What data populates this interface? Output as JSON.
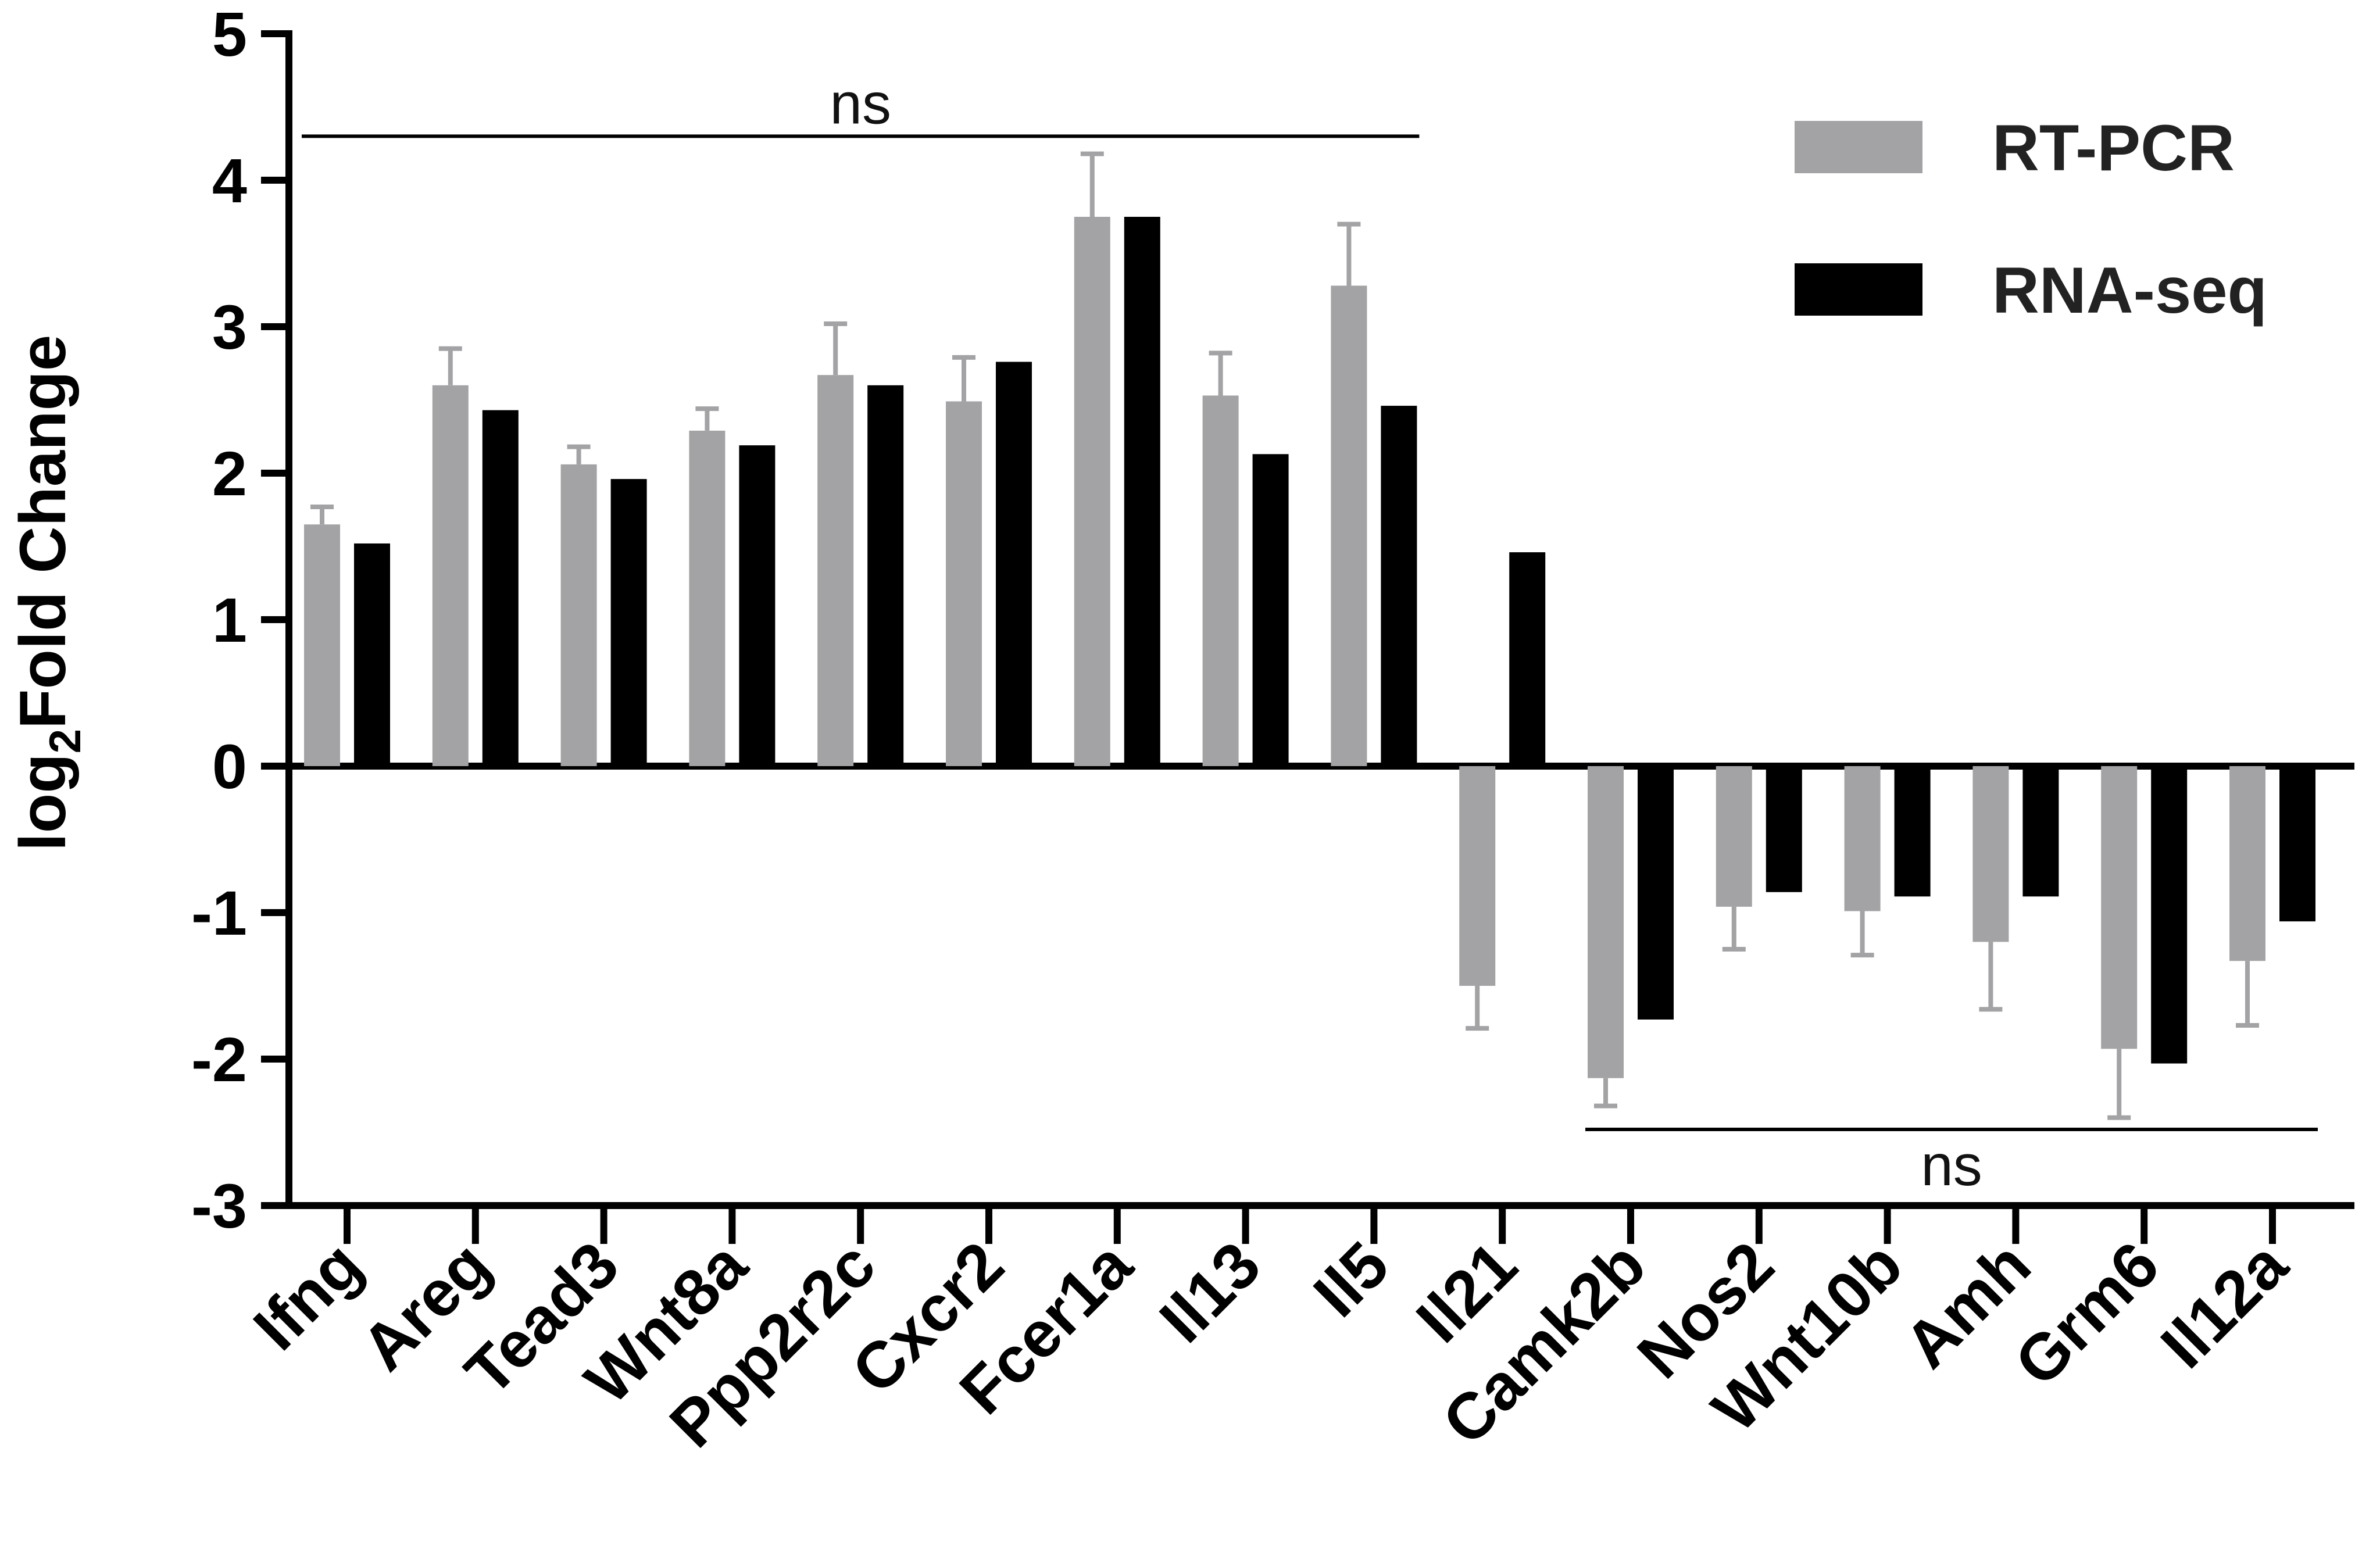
{
  "chart_data": {
    "type": "bar",
    "title": "",
    "xlabel": "",
    "ylabel_prefix": "log",
    "ylabel_subscript": "2",
    "ylabel_suffix": "Fold Change",
    "ylim": [
      -3,
      5
    ],
    "yticks": [
      5,
      4,
      3,
      2,
      1,
      0,
      -1,
      -2,
      -3
    ],
    "grid": false,
    "legend_position": "top-right",
    "categories": [
      "Ifng",
      "Areg",
      "Tead3",
      "Wnt8a",
      "Ppp2r2c",
      "Cxcr2",
      "Fcer1a",
      "Il13",
      "Il5",
      "Il21",
      "Camk2b",
      "Nos2",
      "Wnt10b",
      "Amh",
      "Grm6",
      "Il12a"
    ],
    "series": [
      {
        "name": "RT-PCR",
        "color": "#a3a3a6",
        "values": [
          1.65,
          2.6,
          2.06,
          2.29,
          2.67,
          2.49,
          3.75,
          2.53,
          3.28,
          -1.5,
          -2.13,
          -0.96,
          -0.99,
          -1.2,
          -1.93,
          -1.33
        ],
        "errors": [
          0.12,
          0.25,
          0.12,
          0.15,
          0.35,
          0.3,
          0.43,
          0.29,
          0.42,
          0.29,
          0.19,
          0.29,
          0.3,
          0.46,
          0.47,
          0.44
        ]
      },
      {
        "name": "RNA-seq",
        "color": "#000000",
        "values": [
          1.52,
          2.43,
          1.96,
          2.19,
          2.6,
          2.76,
          3.75,
          2.13,
          2.46,
          1.46,
          -1.73,
          -0.86,
          -0.89,
          -0.89,
          -2.03,
          -1.06
        ]
      }
    ],
    "annotations": [
      {
        "text": "ns",
        "from_category": "Ifng",
        "to_category": "Il5",
        "y": 4.3
      },
      {
        "text": "ns",
        "from_category": "Camk2b",
        "to_category": "Il12a",
        "y": -2.48
      }
    ]
  }
}
